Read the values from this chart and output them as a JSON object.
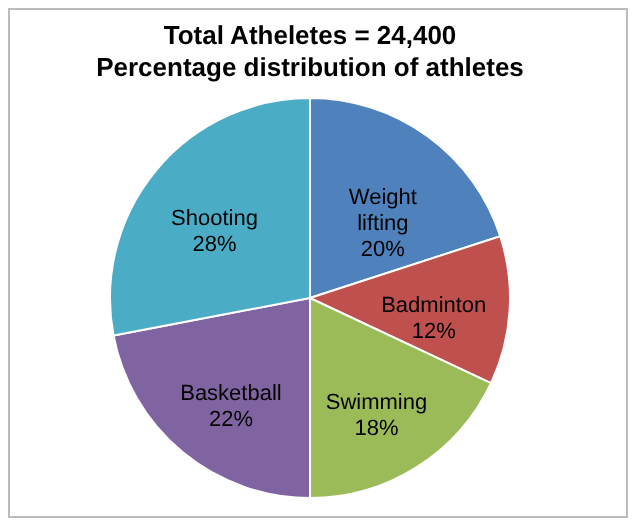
{
  "chart_data": {
    "type": "pie",
    "title": "Total Atheletes = 24,400",
    "subtitle": "Percentage distribution of athletes",
    "categories": [
      "Weight lifting",
      "Badminton",
      "Swimming",
      "Basketball",
      "Shooting"
    ],
    "values": [
      20,
      12,
      18,
      22,
      28
    ],
    "value_labels": [
      "20%",
      "12%",
      "18%",
      "22%",
      "28%"
    ],
    "colors": [
      "#4f81bd",
      "#c0504d",
      "#9bbb59",
      "#8064a2",
      "#4bacc6"
    ]
  }
}
